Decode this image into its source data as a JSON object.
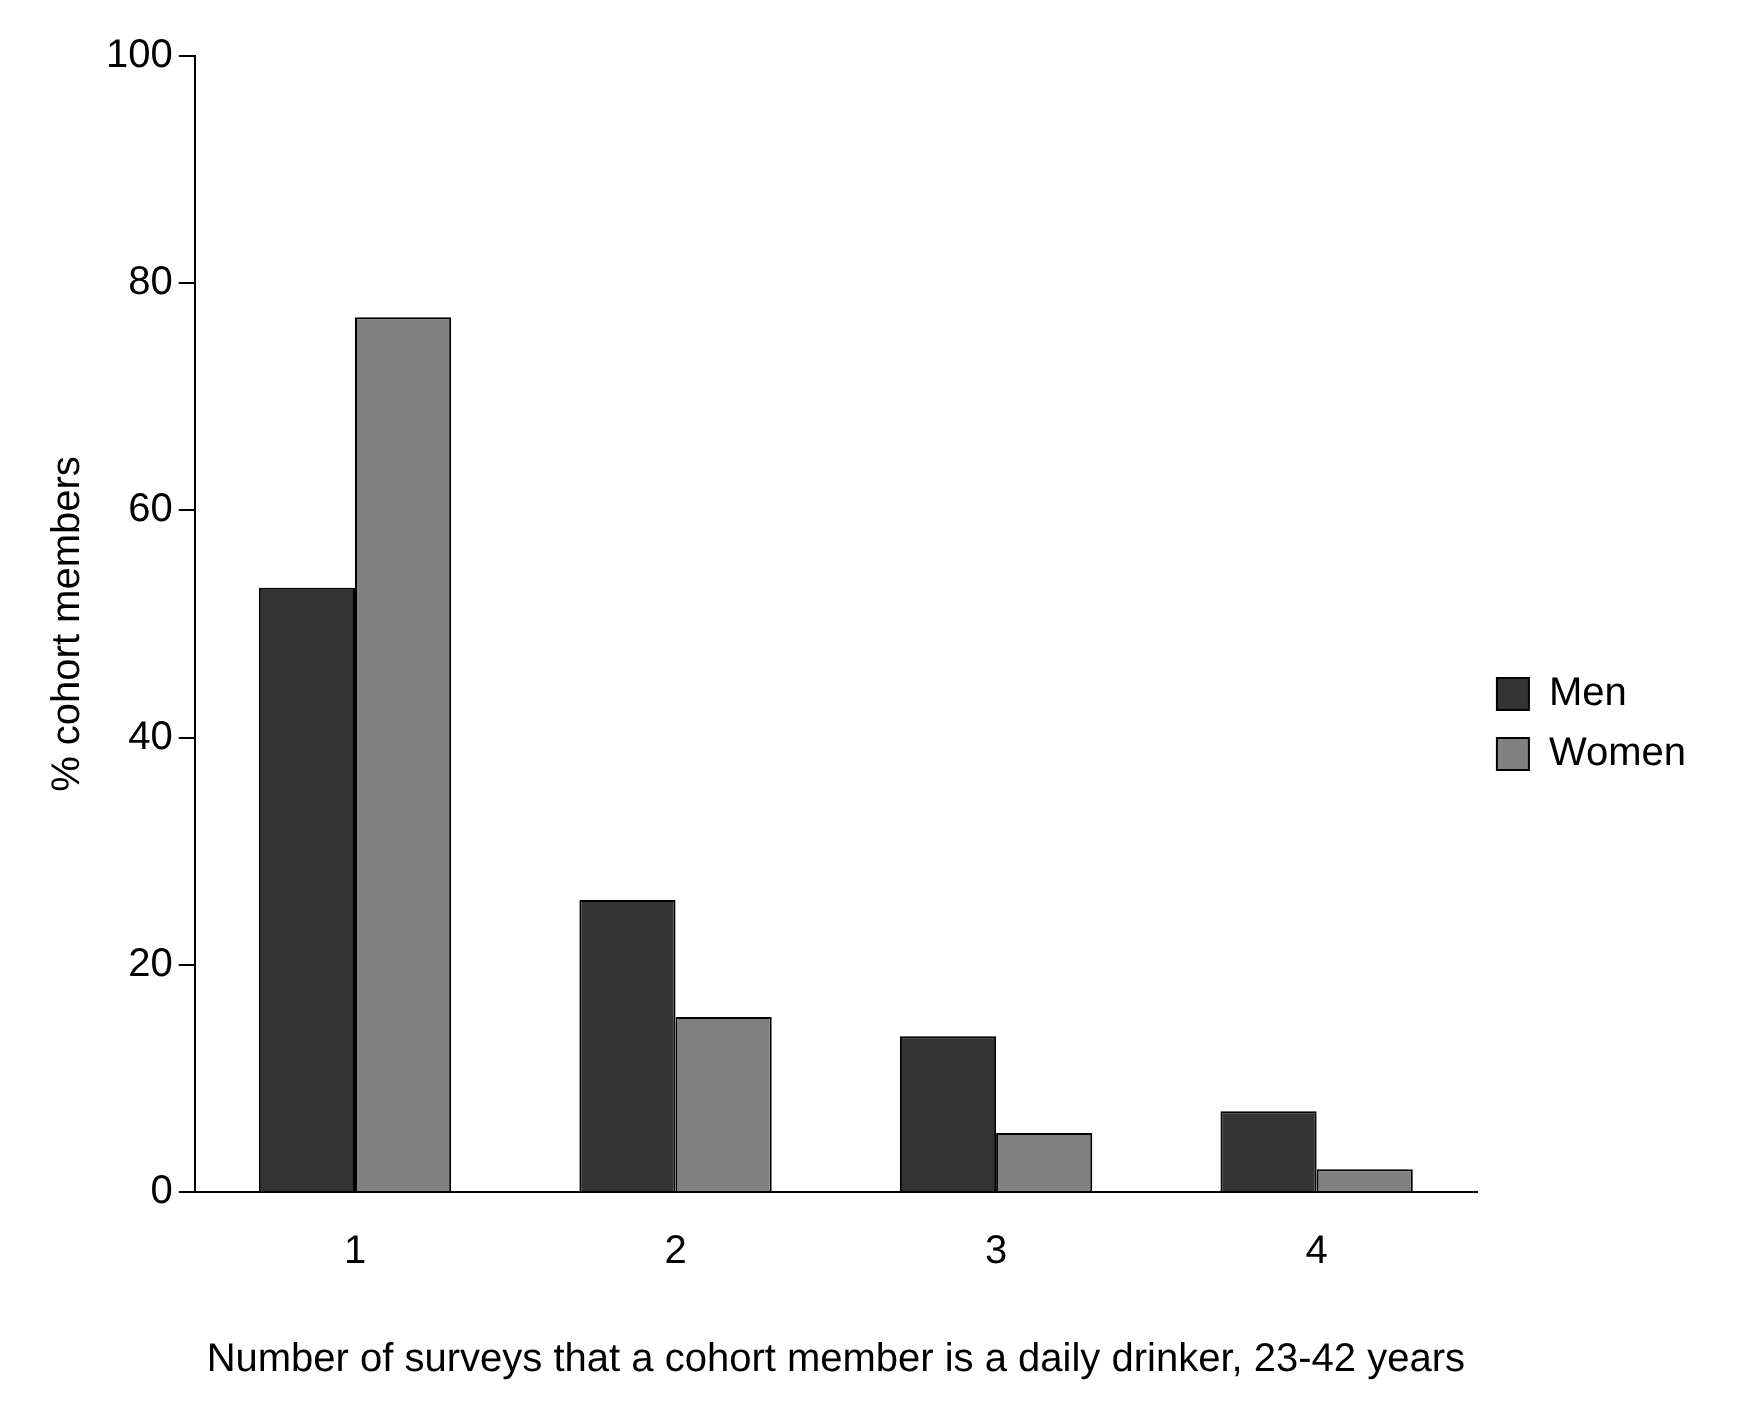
{
  "chart_data": {
    "type": "bar",
    "xlabel": "Number of surveys that a cohort member is a daily drinker, 23-42 years",
    "ylabel": "% cohort members",
    "categories": [
      "1",
      "2",
      "3",
      "4"
    ],
    "series": [
      {
        "name": "Men",
        "color": "#333333",
        "values": [
          53.2,
          25.7,
          13.7,
          7.1
        ]
      },
      {
        "name": "Women",
        "color": "#808080",
        "values": [
          77,
          15.4,
          5.2,
          2
        ]
      }
    ],
    "ylim": [
      0,
      100
    ],
    "yticks": [
      0,
      20,
      40,
      60,
      80,
      100
    ],
    "grid": false,
    "legend": "right"
  }
}
